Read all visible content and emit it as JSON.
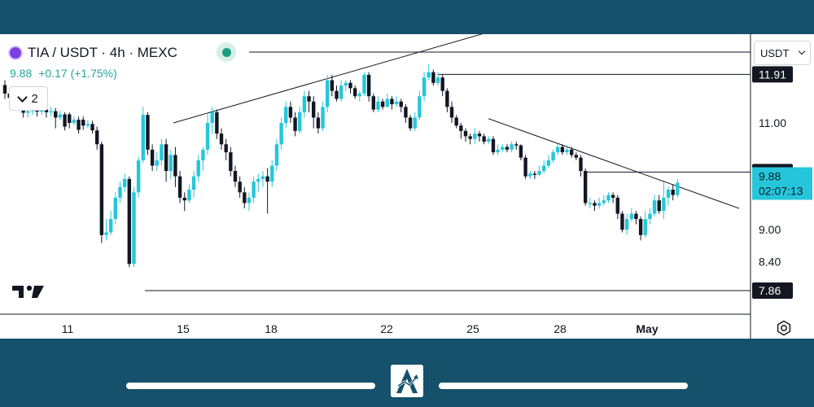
{
  "header": {
    "title": "TIA / USDT · 4h · MEXC",
    "last": "9.88",
    "change": "+0.17 (+1.75%)",
    "indicator_count": "2"
  },
  "unit_select": "USDT",
  "colors": {
    "up": "#26a69a",
    "down": "#131722",
    "frame": "#16516b",
    "accent": "#1a9e7f"
  },
  "chart_data": {
    "type": "candlestick",
    "title": "TIA / USDT · 4h · MEXC",
    "ylim": [
      7.86,
      12.6
    ],
    "y_ticks": [
      {
        "value": 11.0,
        "label": "11.00"
      },
      {
        "value": 9.0,
        "label": "9.00"
      },
      {
        "value": 8.4,
        "label": "8.40"
      }
    ],
    "price_levels": [
      {
        "value": 11.91,
        "label": "11.91"
      },
      {
        "value": 10.08,
        "label": "10.08"
      },
      {
        "value": 7.86,
        "label": "7.86"
      }
    ],
    "current_price": {
      "value": 9.88,
      "label": "9.88",
      "countdown": "02:07:13"
    },
    "x_ticks": [
      "11",
      "15",
      "18",
      "22",
      "25",
      "28",
      "May"
    ],
    "trendlines": [
      {
        "from": [
          "13 Apr",
          11.0
        ],
        "to": [
          "25 Apr",
          12.7
        ]
      },
      {
        "from": [
          "25 Apr",
          11.08
        ],
        "to": [
          "May",
          9.4
        ]
      }
    ],
    "candles": [
      [
        11.71,
        11.55,
        11.8,
        11.45
      ],
      [
        11.55,
        11.47,
        11.65,
        11.36
      ],
      [
        11.47,
        11.39,
        11.55,
        11.3
      ],
      [
        11.39,
        11.3,
        11.47,
        11.23
      ],
      [
        11.3,
        11.19,
        11.38,
        11.1
      ],
      [
        11.19,
        11.22,
        11.3,
        11.1
      ],
      [
        11.22,
        11.29,
        11.35,
        11.15
      ],
      [
        11.29,
        11.21,
        11.35,
        11.12
      ],
      [
        11.21,
        11.25,
        11.32,
        11.15
      ],
      [
        11.25,
        11.2,
        11.33,
        11.1
      ],
      [
        11.2,
        11.22,
        11.3,
        11.12
      ],
      [
        11.22,
        11.1,
        11.28,
        10.9
      ],
      [
        11.1,
        11.16,
        11.22,
        11.05
      ],
      [
        11.16,
        10.93,
        11.2,
        10.86
      ],
      [
        11.16,
        11.0,
        11.2,
        10.9
      ],
      [
        11.0,
        11.06,
        11.12,
        10.95
      ],
      [
        11.06,
        10.87,
        11.12,
        10.8
      ],
      [
        11.06,
        10.95,
        11.12,
        10.87
      ],
      [
        10.95,
        10.98,
        11.05,
        10.9
      ],
      [
        10.98,
        10.86,
        11.04,
        10.8
      ],
      [
        10.86,
        10.6,
        10.93,
        10.5
      ],
      [
        10.6,
        8.9,
        10.65,
        8.75
      ],
      [
        8.9,
        8.95,
        9.2,
        8.8
      ],
      [
        8.95,
        9.2,
        9.35,
        8.9
      ],
      [
        9.2,
        9.6,
        9.7,
        9.1
      ],
      [
        9.6,
        9.8,
        9.9,
        9.5
      ],
      [
        9.8,
        9.95,
        10.05,
        9.7
      ],
      [
        9.95,
        8.36,
        10.0,
        8.3
      ],
      [
        8.36,
        9.7,
        9.8,
        8.3
      ],
      [
        9.7,
        10.3,
        10.37,
        9.6
      ],
      [
        10.3,
        11.15,
        11.3,
        10.25
      ],
      [
        11.15,
        10.5,
        11.2,
        10.4
      ],
      [
        10.5,
        10.2,
        10.6,
        10.1
      ],
      [
        10.2,
        10.3,
        10.45,
        10.1
      ],
      [
        10.3,
        10.6,
        10.7,
        10.2
      ],
      [
        10.6,
        10.1,
        10.7,
        9.9
      ],
      [
        10.1,
        10.4,
        10.5,
        9.95
      ],
      [
        10.4,
        10.0,
        10.55,
        9.8
      ],
      [
        10.0,
        9.6,
        10.1,
        9.5
      ],
      [
        9.6,
        9.55,
        9.7,
        9.35
      ],
      [
        9.55,
        9.75,
        9.85,
        9.5
      ],
      [
        9.75,
        10.0,
        10.1,
        9.6
      ],
      [
        10.0,
        10.3,
        10.4,
        9.9
      ],
      [
        10.3,
        10.5,
        10.55,
        10.1
      ],
      [
        10.5,
        11.0,
        11.2,
        10.4
      ],
      [
        11.0,
        11.2,
        11.3,
        10.8
      ],
      [
        11.2,
        10.8,
        11.25,
        10.7
      ],
      [
        10.8,
        10.6,
        10.9,
        10.5
      ],
      [
        10.6,
        10.45,
        10.7,
        10.3
      ],
      [
        10.45,
        10.1,
        10.55,
        10.0
      ],
      [
        10.1,
        9.9,
        10.2,
        9.8
      ],
      [
        9.9,
        9.7,
        10.0,
        9.6
      ],
      [
        9.7,
        9.5,
        9.8,
        9.4
      ],
      [
        9.5,
        9.6,
        9.7,
        9.35
      ],
      [
        9.6,
        9.9,
        10.0,
        9.5
      ],
      [
        9.9,
        9.95,
        10.05,
        9.7
      ],
      [
        9.95,
        10.0,
        10.1,
        9.8
      ],
      [
        10.0,
        9.9,
        10.15,
        9.3
      ],
      [
        9.9,
        10.2,
        10.3,
        9.8
      ],
      [
        10.2,
        10.6,
        10.7,
        10.1
      ],
      [
        10.6,
        11.0,
        11.1,
        10.5
      ],
      [
        11.0,
        11.3,
        11.4,
        10.9
      ],
      [
        11.3,
        11.1,
        11.4,
        11.0
      ],
      [
        11.1,
        10.85,
        11.2,
        10.75
      ],
      [
        10.85,
        11.2,
        11.3,
        10.8
      ],
      [
        11.2,
        11.5,
        11.6,
        11.1
      ],
      [
        11.5,
        11.4,
        11.6,
        11.2
      ],
      [
        11.4,
        11.1,
        11.5,
        10.9
      ],
      [
        11.1,
        10.9,
        11.2,
        10.8
      ],
      [
        10.9,
        11.3,
        11.4,
        10.85
      ],
      [
        11.3,
        11.8,
        11.9,
        11.2
      ],
      [
        11.8,
        11.6,
        11.9,
        11.5
      ],
      [
        11.6,
        11.45,
        11.7,
        11.4
      ],
      [
        11.45,
        11.7,
        11.8,
        11.4
      ],
      [
        11.7,
        11.75,
        11.8,
        11.6
      ],
      [
        11.75,
        11.65,
        11.8,
        11.55
      ],
      [
        11.65,
        11.5,
        11.7,
        11.45
      ],
      [
        11.5,
        11.55,
        11.6,
        11.4
      ],
      [
        11.55,
        11.9,
        11.95,
        11.5
      ],
      [
        11.9,
        11.5,
        11.95,
        11.4
      ],
      [
        11.5,
        11.25,
        11.55,
        11.2
      ],
      [
        11.25,
        11.4,
        11.5,
        11.2
      ],
      [
        11.4,
        11.3,
        11.45,
        11.25
      ],
      [
        11.3,
        11.45,
        11.55,
        11.3
      ],
      [
        11.45,
        11.35,
        11.5,
        11.25
      ],
      [
        11.35,
        11.4,
        11.5,
        11.3
      ],
      [
        11.4,
        11.3,
        11.45,
        11.2
      ],
      [
        11.3,
        11.1,
        11.35,
        11.0
      ],
      [
        11.1,
        10.9,
        11.15,
        10.85
      ],
      [
        10.9,
        11.1,
        11.2,
        10.85
      ],
      [
        11.1,
        11.5,
        11.6,
        11.05
      ],
      [
        11.5,
        11.85,
        11.95,
        11.4
      ],
      [
        11.85,
        11.95,
        12.1,
        11.8
      ],
      [
        11.95,
        11.75,
        12.0,
        11.7
      ],
      [
        11.75,
        11.85,
        11.95,
        11.7
      ],
      [
        11.85,
        11.6,
        11.9,
        11.5
      ],
      [
        11.6,
        11.3,
        11.65,
        11.2
      ],
      [
        11.3,
        11.1,
        11.4,
        11.0
      ],
      [
        11.1,
        10.95,
        11.15,
        10.9
      ],
      [
        10.95,
        10.85,
        11.0,
        10.7
      ],
      [
        10.85,
        10.75,
        10.9,
        10.65
      ],
      [
        10.75,
        10.7,
        10.8,
        10.6
      ],
      [
        10.7,
        10.8,
        10.9,
        10.6
      ],
      [
        10.8,
        10.75,
        10.85,
        10.65
      ],
      [
        10.75,
        10.65,
        10.8,
        10.6
      ],
      [
        10.65,
        10.7,
        10.75,
        10.6
      ],
      [
        10.7,
        10.45,
        10.75,
        10.4
      ],
      [
        10.45,
        10.5,
        10.6,
        10.4
      ],
      [
        10.5,
        10.55,
        10.6,
        10.45
      ],
      [
        10.55,
        10.5,
        10.6,
        10.45
      ],
      [
        10.5,
        10.6,
        10.65,
        10.45
      ],
      [
        10.6,
        10.58,
        10.65,
        10.5
      ],
      [
        10.58,
        10.35,
        10.6,
        10.3
      ],
      [
        10.35,
        10.0,
        10.4,
        9.95
      ],
      [
        10.0,
        10.05,
        10.1,
        9.95
      ],
      [
        10.05,
        10.03,
        10.1,
        9.95
      ],
      [
        10.03,
        10.1,
        10.2,
        10.0
      ],
      [
        10.1,
        10.2,
        10.3,
        10.05
      ],
      [
        10.2,
        10.3,
        10.4,
        10.15
      ],
      [
        10.3,
        10.45,
        10.5,
        10.25
      ],
      [
        10.45,
        10.55,
        10.6,
        10.4
      ],
      [
        10.55,
        10.45,
        10.6,
        10.4
      ],
      [
        10.45,
        10.5,
        10.55,
        10.4
      ],
      [
        10.5,
        10.4,
        10.55,
        10.35
      ],
      [
        10.4,
        10.35,
        10.45,
        10.3
      ],
      [
        10.35,
        10.1,
        10.4,
        10.0
      ],
      [
        10.1,
        9.5,
        10.15,
        9.45
      ],
      [
        9.5,
        9.5,
        9.6,
        9.4
      ],
      [
        9.5,
        9.45,
        9.55,
        9.35
      ],
      [
        9.45,
        9.5,
        9.6,
        9.4
      ],
      [
        9.5,
        9.55,
        9.65,
        9.45
      ],
      [
        9.55,
        9.65,
        9.7,
        9.5
      ],
      [
        9.65,
        9.6,
        9.7,
        9.5
      ],
      [
        9.6,
        9.3,
        9.65,
        9.2
      ],
      [
        9.3,
        9.0,
        9.35,
        8.95
      ],
      [
        9.0,
        9.2,
        9.3,
        8.9
      ],
      [
        9.2,
        9.3,
        9.4,
        9.15
      ],
      [
        9.3,
        9.2,
        9.35,
        9.1
      ],
      [
        9.2,
        8.9,
        9.25,
        8.8
      ],
      [
        8.9,
        9.2,
        9.35,
        8.85
      ],
      [
        9.2,
        9.3,
        9.4,
        9.1
      ],
      [
        9.3,
        9.55,
        9.65,
        9.25
      ],
      [
        9.55,
        9.35,
        9.65,
        9.3
      ],
      [
        9.35,
        9.6,
        9.9,
        9.2
      ],
      [
        9.6,
        9.75,
        9.8,
        9.45
      ],
      [
        9.75,
        9.65,
        9.85,
        9.55
      ],
      [
        9.65,
        9.88,
        9.95,
        9.6
      ]
    ]
  },
  "icons": {
    "logo": "tradingview-logo",
    "settings": "gear-icon",
    "brand": "brand-logo"
  }
}
